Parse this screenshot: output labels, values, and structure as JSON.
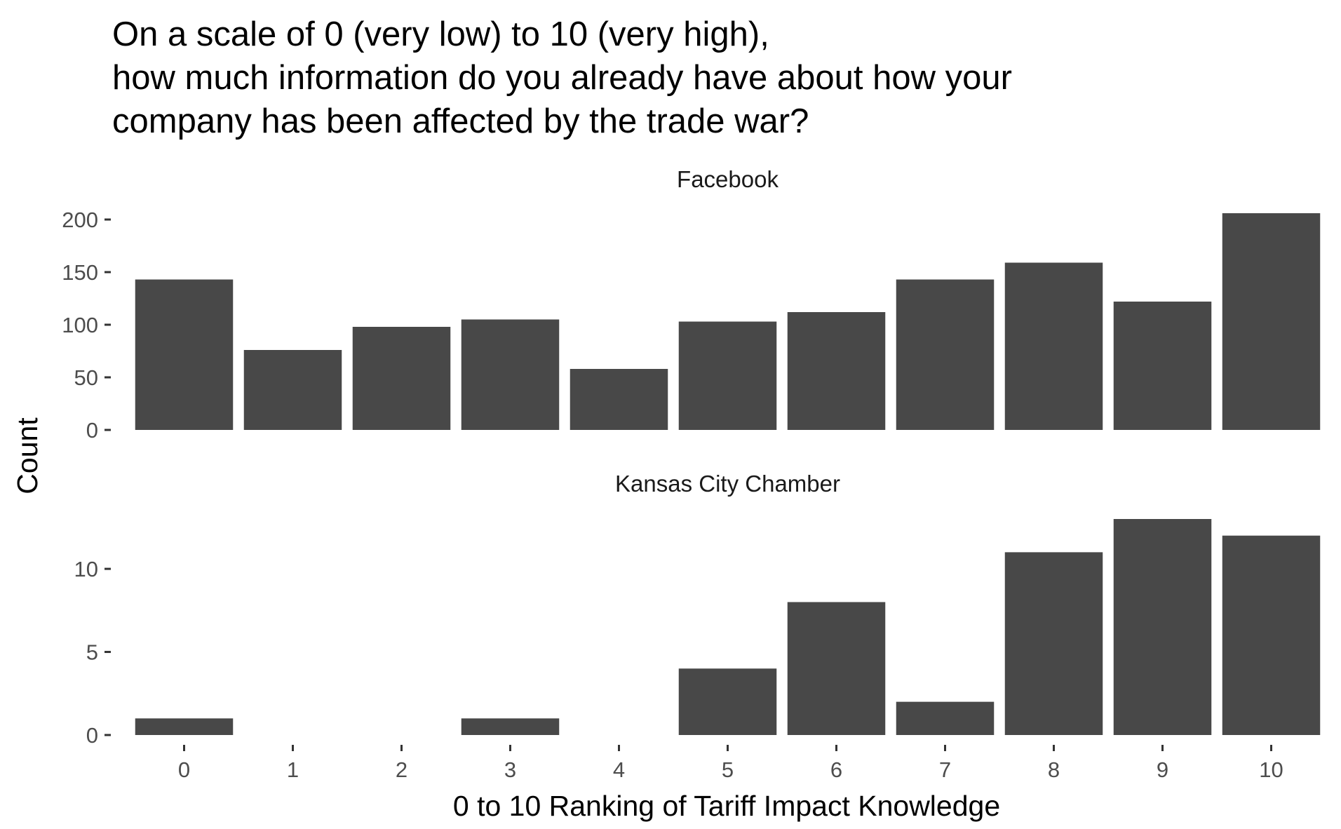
{
  "chart_data": {
    "type": "bar",
    "title_lines": [
      "On a scale of 0 (very low) to 10 (very high),",
      "how much information do you already have about how your",
      "company has been affected by the trade war?"
    ],
    "xlabel": "0 to 10 Ranking of Tariff Impact Knowledge",
    "ylabel": "Count",
    "categories": [
      "0",
      "1",
      "2",
      "3",
      "4",
      "5",
      "6",
      "7",
      "8",
      "9",
      "10"
    ],
    "bar_color": "#484848",
    "panels": [
      {
        "name": "Facebook",
        "values": [
          143,
          76,
          98,
          105,
          58,
          103,
          112,
          143,
          159,
          122,
          206
        ],
        "yticks": [
          0,
          50,
          100,
          150,
          200
        ],
        "ylim": [
          0,
          206
        ]
      },
      {
        "name": "Kansas City Chamber",
        "values": [
          1,
          0,
          0,
          1,
          0,
          4,
          8,
          2,
          11,
          13,
          12
        ],
        "yticks": [
          0,
          5,
          10
        ],
        "ylim": [
          0,
          13
        ]
      }
    ]
  }
}
